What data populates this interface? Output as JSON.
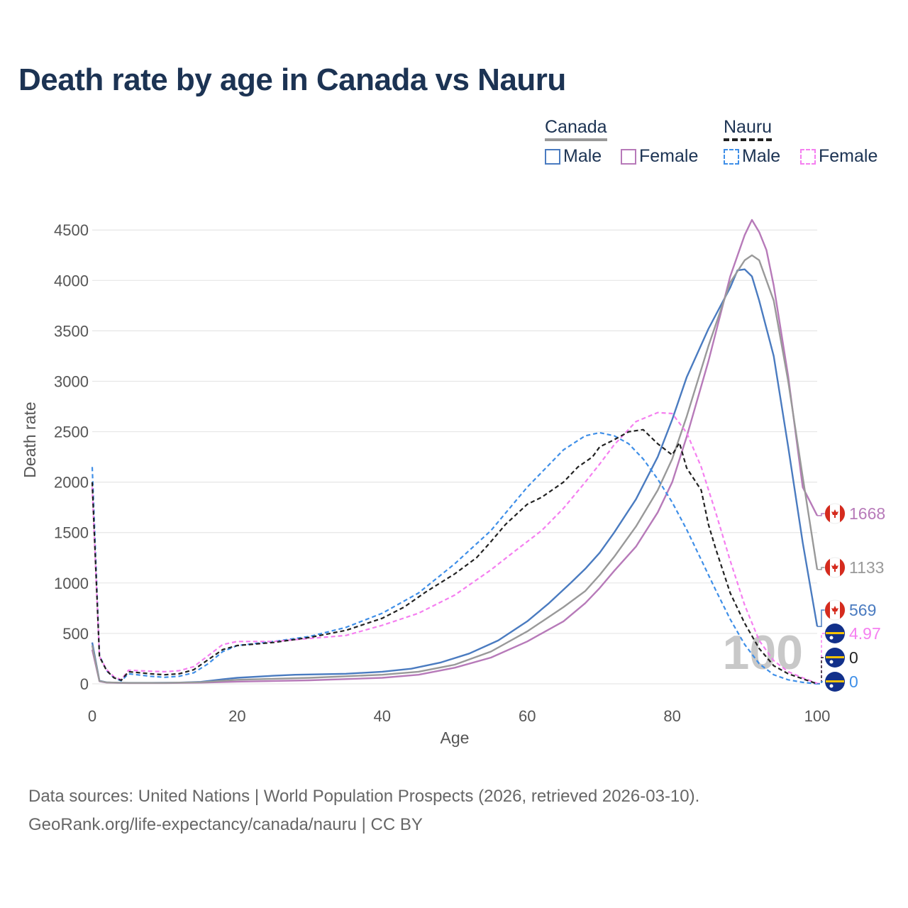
{
  "title": "Death rate by age in Canada vs Nauru",
  "legend": {
    "groups": [
      {
        "name": "Canada",
        "items": [
          {
            "label": "Male",
            "color": "#4a7bc0",
            "dashed": false
          },
          {
            "label": "Female",
            "color": "#b77ab9",
            "dashed": false
          }
        ]
      },
      {
        "name": "Nauru",
        "items": [
          {
            "label": "Male",
            "color": "#3f8fe8",
            "dashed": true
          },
          {
            "label": "Female",
            "color": "#f57ff0",
            "dashed": true
          }
        ]
      }
    ]
  },
  "footer": {
    "line1": "Data sources: United Nations | World Population Prospects (2026, retrieved 2026-03-10).",
    "line2": "GeoRank.org/life-expectancy/canada/nauru | CC BY"
  },
  "chart_data": {
    "type": "line",
    "title": "Death rate by age in Canada vs Nauru",
    "xlabel": "Age",
    "ylabel": "Death rate",
    "xlim": [
      0,
      100
    ],
    "ylim": [
      0,
      4600
    ],
    "xticks": [
      0,
      20,
      40,
      60,
      80,
      100
    ],
    "yticks": [
      0,
      500,
      1000,
      1500,
      2000,
      2500,
      3000,
      3500,
      4000,
      4500
    ],
    "watermark": "100",
    "series": [
      {
        "name": "Canada Male",
        "color": "#4a7bc0",
        "dashed": false,
        "end_label": "569",
        "x": [
          0,
          1,
          2,
          3,
          4,
          5,
          8,
          12,
          15,
          18,
          20,
          25,
          28,
          35,
          40,
          44,
          48,
          52,
          56,
          60,
          63,
          66,
          68,
          70,
          72,
          75,
          78,
          80,
          82,
          85,
          88,
          89,
          90,
          91,
          92,
          94,
          96,
          98,
          100
        ],
        "y": [
          410,
          30,
          15,
          12,
          10,
          10,
          10,
          12,
          20,
          45,
          60,
          80,
          90,
          100,
          120,
          150,
          210,
          300,
          430,
          620,
          800,
          1000,
          1140,
          1300,
          1500,
          1830,
          2250,
          2620,
          3040,
          3520,
          3930,
          4100,
          4110,
          4040,
          3800,
          3250,
          2350,
          1400,
          569
        ]
      },
      {
        "name": "Canada Female",
        "color": "#b77ab9",
        "dashed": false,
        "end_label": "1668",
        "x": [
          0,
          1,
          2,
          3,
          5,
          10,
          15,
          20,
          30,
          40,
          45,
          50,
          55,
          60,
          65,
          68,
          70,
          72,
          75,
          78,
          80,
          82,
          85,
          88,
          90,
          91,
          92,
          93,
          94,
          96,
          98,
          100
        ],
        "y": [
          340,
          25,
          12,
          10,
          8,
          8,
          12,
          22,
          35,
          60,
          90,
          160,
          260,
          420,
          620,
          800,
          950,
          1120,
          1360,
          1700,
          2000,
          2450,
          3200,
          4040,
          4450,
          4600,
          4480,
          4300,
          3950,
          3050,
          1950,
          1668
        ]
      },
      {
        "name": "Canada Total",
        "color": "#999999",
        "dashed": false,
        "end_label": "1133",
        "x": [
          0,
          1,
          2,
          5,
          10,
          15,
          20,
          30,
          40,
          45,
          50,
          55,
          60,
          65,
          68,
          70,
          72,
          75,
          78,
          80,
          82,
          85,
          88,
          90,
          91,
          92,
          94,
          96,
          98,
          100
        ],
        "y": [
          380,
          28,
          14,
          9,
          9,
          16,
          40,
          60,
          90,
          120,
          190,
          320,
          520,
          760,
          920,
          1080,
          1260,
          1560,
          1920,
          2230,
          2650,
          3350,
          3980,
          4200,
          4250,
          4200,
          3800,
          3000,
          2050,
          1133
        ]
      },
      {
        "name": "Nauru Male",
        "color": "#3f8fe8",
        "dashed": true,
        "end_label": "0",
        "x": [
          0,
          1,
          2,
          3,
          4,
          5,
          8,
          10,
          12,
          14,
          16,
          18,
          20,
          25,
          30,
          35,
          40,
          45,
          50,
          55,
          60,
          65,
          68,
          70,
          72,
          74,
          76,
          78,
          80,
          82,
          84,
          86,
          88,
          90,
          92,
          94,
          96,
          98,
          100
        ],
        "y": [
          2150,
          280,
          130,
          60,
          30,
          100,
          75,
          65,
          75,
          110,
          200,
          320,
          380,
          420,
          470,
          560,
          700,
          900,
          1190,
          1520,
          1950,
          2320,
          2460,
          2490,
          2460,
          2380,
          2230,
          2030,
          1800,
          1530,
          1230,
          930,
          640,
          390,
          200,
          90,
          40,
          15,
          0
        ]
      },
      {
        "name": "Nauru Female",
        "color": "#f57ff0",
        "dashed": true,
        "end_label": "4.97",
        "x": [
          0,
          1,
          2,
          3,
          4,
          5,
          8,
          10,
          12,
          14,
          16,
          18,
          20,
          25,
          30,
          35,
          40,
          45,
          50,
          55,
          58,
          62,
          65,
          68,
          70,
          72,
          75,
          78,
          80,
          82,
          84,
          86,
          88,
          90,
          92,
          94,
          96,
          98,
          100
        ],
        "y": [
          1950,
          270,
          140,
          70,
          40,
          135,
          125,
          120,
          130,
          170,
          280,
          390,
          420,
          420,
          450,
          480,
          580,
          700,
          880,
          1130,
          1300,
          1520,
          1740,
          2000,
          2180,
          2370,
          2600,
          2690,
          2680,
          2490,
          2150,
          1700,
          1220,
          780,
          430,
          230,
          120,
          60,
          5
        ]
      },
      {
        "name": "Nauru Total",
        "color": "#222222",
        "dashed": true,
        "end_label": "0",
        "x": [
          0,
          1,
          2,
          3,
          4,
          5,
          8,
          10,
          12,
          14,
          16,
          18,
          20,
          25,
          30,
          35,
          40,
          43,
          46,
          50,
          53,
          55,
          57,
          60,
          62,
          65,
          67,
          69,
          70,
          72,
          74,
          76,
          78,
          80,
          81,
          82,
          84,
          85,
          86,
          88,
          90,
          92,
          94,
          96,
          98,
          100
        ],
        "y": [
          2000,
          270,
          130,
          60,
          35,
          120,
          100,
          90,
          100,
          140,
          240,
          340,
          380,
          410,
          460,
          530,
          650,
          760,
          910,
          1090,
          1250,
          1410,
          1580,
          1780,
          1850,
          2000,
          2150,
          2250,
          2350,
          2420,
          2500,
          2520,
          2380,
          2270,
          2390,
          2140,
          1920,
          1580,
          1340,
          900,
          600,
          350,
          180,
          100,
          50,
          0
        ]
      }
    ]
  }
}
